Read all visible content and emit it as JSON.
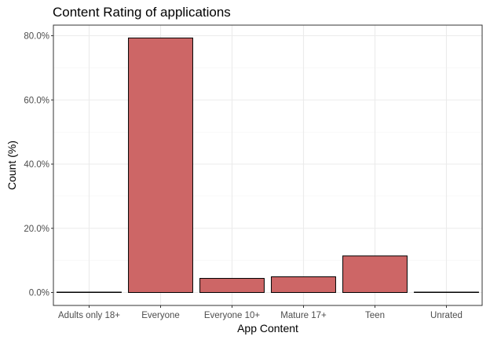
{
  "chart_data": {
    "type": "bar",
    "title": "Content Rating of applications",
    "xlabel": "App Content",
    "ylabel": "Count (%)",
    "categories": [
      "Adults only 18+",
      "Everyone",
      "Everyone 10+",
      "Mature 17+",
      "Teen",
      "Unrated"
    ],
    "values": [
      0.03,
      79.3,
      4.4,
      4.9,
      11.4,
      0.02
    ],
    "ylim": [
      0,
      85
    ],
    "yticks": [
      0,
      20,
      40,
      60,
      80
    ],
    "ytick_labels": [
      "0.0%",
      "20.0%",
      "40.0%",
      "60.0%",
      "80.0%"
    ],
    "grid": true,
    "colors": {
      "bar_fill": "#cd6666",
      "bar_stroke": "#000000",
      "grid": "#ebebeb",
      "panel_border": "#333333"
    }
  }
}
